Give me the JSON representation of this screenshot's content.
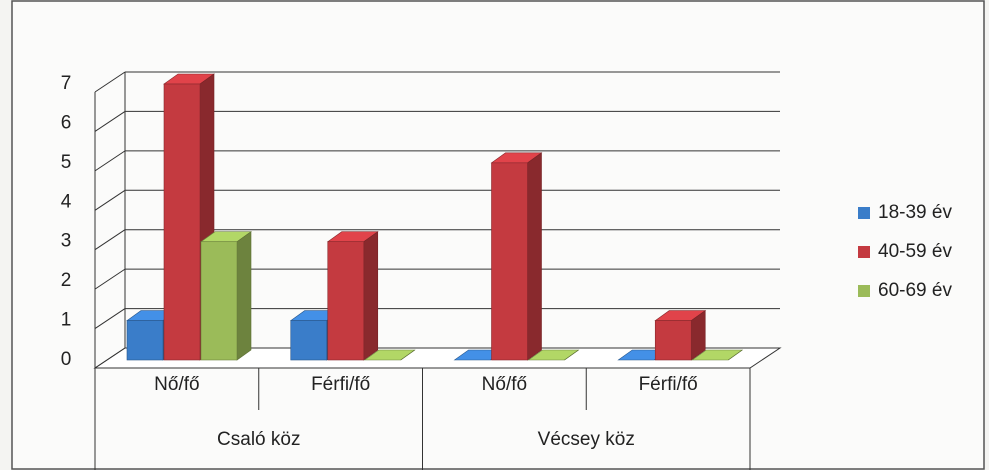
{
  "chart_data": {
    "type": "bar3d",
    "categories": [
      "Nő/fő",
      "Férfi/fő",
      "Nő/fő",
      "Férfi/fő"
    ],
    "groups": [
      {
        "label": "Csaló köz",
        "span": 2
      },
      {
        "label": "Vécsey köz",
        "span": 2
      }
    ],
    "series": [
      {
        "name": "18-39 év",
        "color": "#3a7dc9",
        "values": [
          1,
          1,
          0,
          0
        ]
      },
      {
        "name": "40-59 év",
        "color": "#c43a40",
        "values": [
          7,
          3,
          5,
          1
        ]
      },
      {
        "name": "60-69 év",
        "color": "#9bbb59",
        "values": [
          3,
          0,
          0,
          0
        ]
      }
    ],
    "ylim": [
      0,
      7
    ],
    "yticks": [
      0,
      1,
      2,
      3,
      4,
      5,
      6,
      7
    ],
    "grid": true,
    "legend": "right"
  }
}
